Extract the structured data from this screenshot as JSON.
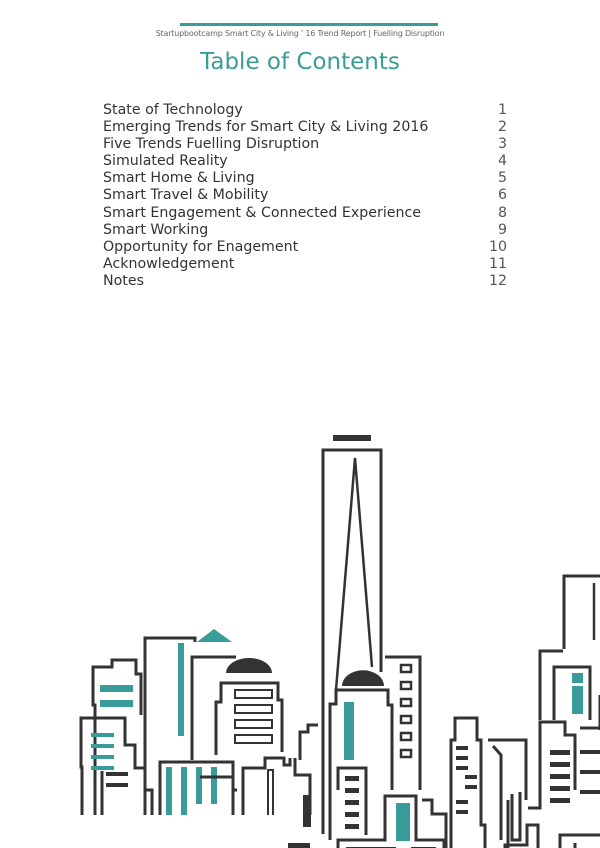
{
  "header": {
    "running_title": "Startupbootcamp Smart City & Living ' 16 Trend Report  |  Fuelling Disruption"
  },
  "title": "Table of Contents",
  "toc": [
    {
      "label": "State of Technology",
      "page": "1"
    },
    {
      "label": "Emerging Trends for Smart City & Living 2016",
      "page": "2"
    },
    {
      "label": "Five Trends Fuelling Disruption",
      "page": "3"
    },
    {
      "label": "Simulated Reality",
      "page": "4"
    },
    {
      "label": "Smart Home & Living",
      "page": "5"
    },
    {
      "label": "Smart Travel & Mobility",
      "page": "6"
    },
    {
      "label": "Smart Engagement & Connected Experience",
      "page": "8"
    },
    {
      "label": "Smart Working",
      "page": "9"
    },
    {
      "label": "Opportunity for Enagement",
      "page": "10"
    },
    {
      "label": "Acknowledgement",
      "page": "11"
    },
    {
      "label": "Notes",
      "page": "12"
    }
  ],
  "colors": {
    "accent": "#3a9c9a",
    "ink": "#333333"
  },
  "illustration": "city-skyline"
}
